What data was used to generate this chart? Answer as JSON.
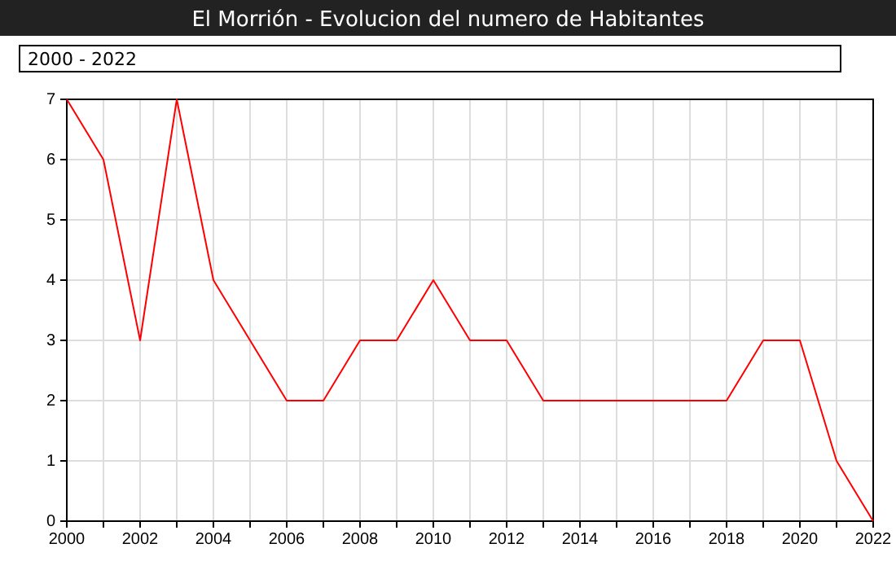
{
  "chart_data": {
    "type": "line",
    "title": "El Morrión - Evolucion del numero de Habitantes",
    "annotations": [
      "2000 - 2022"
    ],
    "x": [
      2000,
      2001,
      2002,
      2003,
      2004,
      2005,
      2006,
      2007,
      2008,
      2009,
      2010,
      2011,
      2012,
      2013,
      2014,
      2015,
      2016,
      2017,
      2018,
      2019,
      2020,
      2021,
      2022
    ],
    "series": [
      {
        "color": "#ff0000",
        "values": [
          7,
          6,
          3,
          7,
          4,
          3,
          2,
          2,
          3,
          3,
          4,
          3,
          3,
          2,
          2,
          2,
          2,
          2,
          2,
          3,
          3,
          1,
          0
        ]
      }
    ],
    "xlim": [
      2000,
      2022
    ],
    "xticks": [
      2000,
      {
        "value": 2001,
        "label": null
      },
      2002,
      {
        "value": 2003,
        "label": null
      },
      2004,
      {
        "value": 2005,
        "label": null
      },
      2006,
      {
        "value": 2007,
        "label": null
      },
      2008,
      {
        "value": 2009,
        "label": null
      },
      2010,
      {
        "value": 2011,
        "label": null
      },
      2012,
      {
        "value": 2013,
        "label": null
      },
      2014,
      {
        "value": 2015,
        "label": null
      },
      2016,
      {
        "value": 2017,
        "label": null
      },
      2018,
      {
        "value": 2019,
        "label": null
      },
      2020,
      {
        "value": 2021,
        "label": null
      },
      2022
    ],
    "ylim": [
      0,
      7
    ],
    "yticks": [
      0,
      1,
      2,
      3,
      4,
      5,
      6,
      7
    ],
    "grid": true,
    "marker": "none",
    "line_style": "solid"
  }
}
